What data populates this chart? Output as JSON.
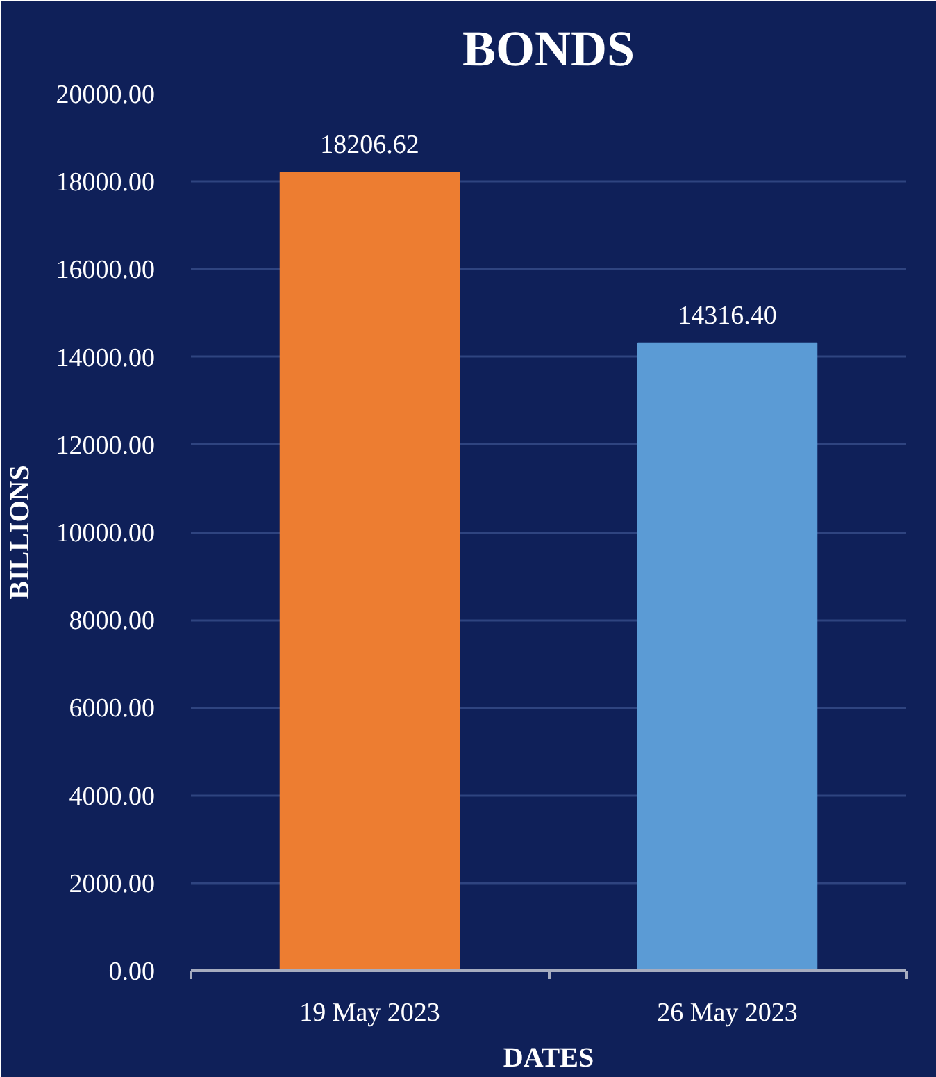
{
  "chart_data": {
    "type": "bar",
    "title": "BONDS",
    "xlabel": "DATES",
    "ylabel": "BILLIONS",
    "categories": [
      "19 May 2023",
      "26 May 2023"
    ],
    "values": [
      18206.62,
      14316.4
    ],
    "colors": [
      "#ed7d31",
      "#5b9bd5"
    ],
    "value_labels": [
      "18206.62",
      "14316.40"
    ],
    "ylim": [
      0,
      20000
    ],
    "yticks": [
      {
        "value": 0,
        "label": "0.00"
      },
      {
        "value": 2000,
        "label": "2000.00"
      },
      {
        "value": 4000,
        "label": "4000.00"
      },
      {
        "value": 6000,
        "label": "6000.00"
      },
      {
        "value": 8000,
        "label": "8000.00"
      },
      {
        "value": 10000,
        "label": "10000.00"
      },
      {
        "value": 12000,
        "label": "12000.00"
      },
      {
        "value": 14000,
        "label": "14000.00"
      },
      {
        "value": 16000,
        "label": "16000.00"
      },
      {
        "value": 18000,
        "label": "18000.00"
      },
      {
        "value": 20000,
        "label": "20000.00"
      }
    ],
    "grid": "y"
  }
}
